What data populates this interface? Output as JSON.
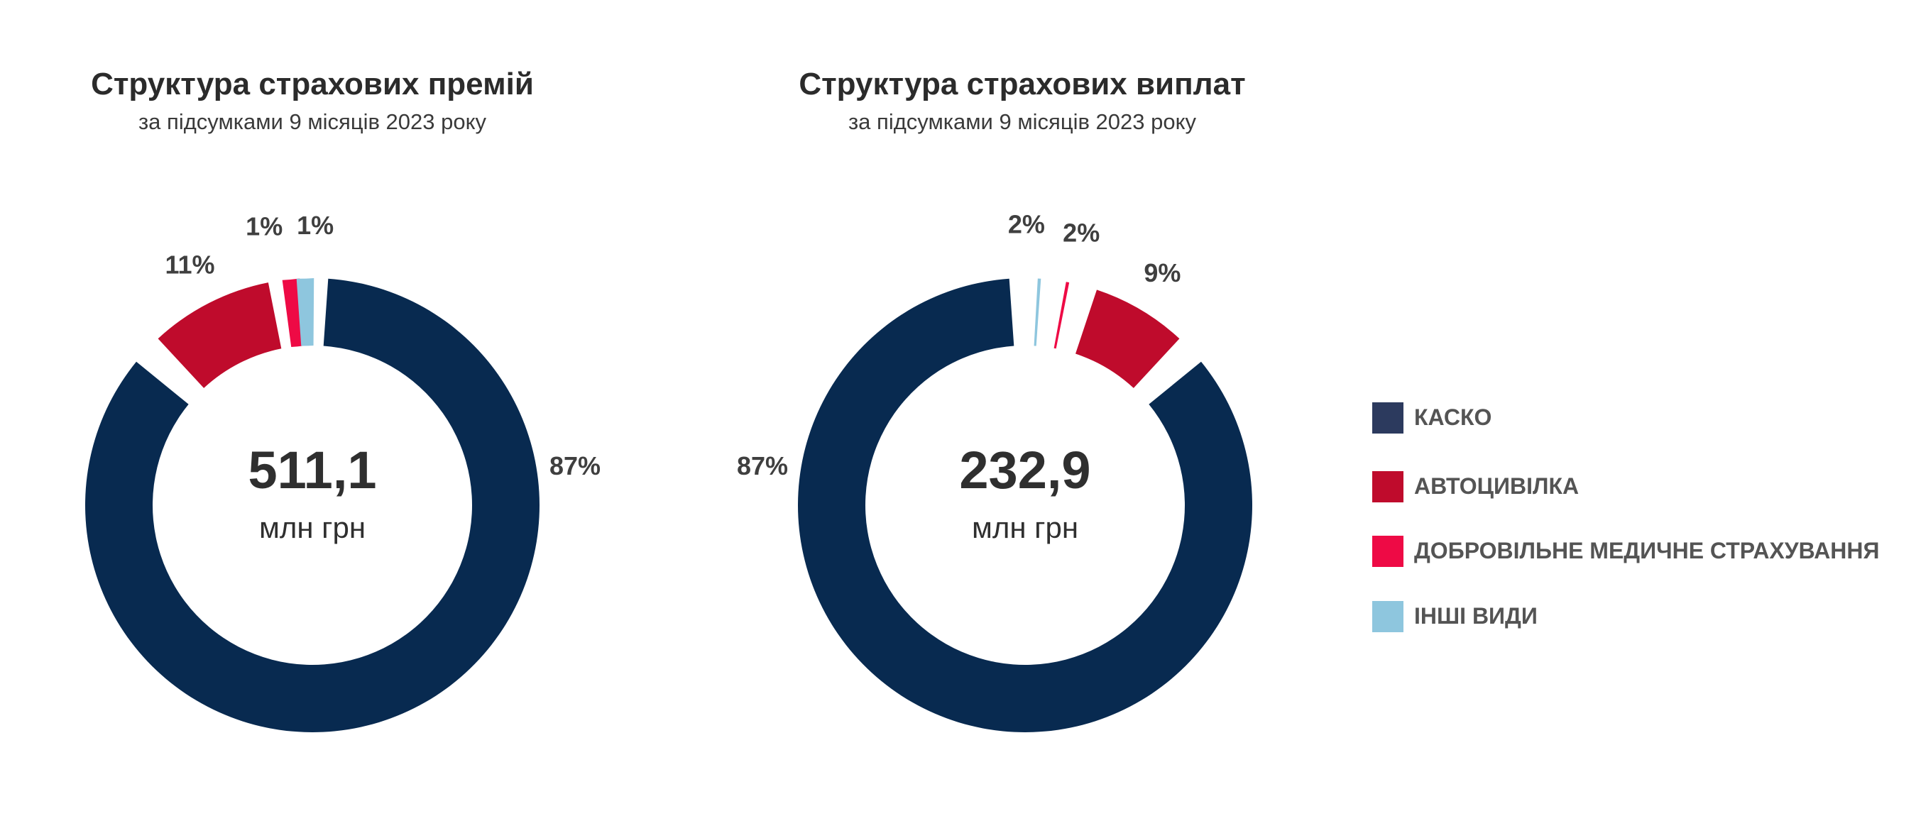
{
  "colors": {
    "kasko": "#082a50",
    "avto": "#bf0b2c",
    "dms": "#ee0a45",
    "other": "#8ec6de"
  },
  "legend": [
    {
      "label": "КАСКО",
      "color": "#2c3a5e"
    },
    {
      "label": "АВТОЦИВІЛКА",
      "color": "#bf0b2c"
    },
    {
      "label": "ДОБРОВІЛЬНЕ МЕДИЧНЕ СТРАХУВАННЯ",
      "color": "#ee0a45"
    },
    {
      "label": "ІНШІ ВИДИ",
      "color": "#8ec6de"
    }
  ],
  "chart_data": [
    {
      "type": "pie",
      "title": "Структура страхових премій",
      "subtitle": "за підсумками 9 місяців 2023 року",
      "center_value": "511,1",
      "center_unit": "млн грн",
      "direction": "clockwise",
      "categories": [
        "КАСКО",
        "АВТОЦИВІЛКА",
        "ДОБРОВІЛЬНЕ МЕДИЧНЕ СТРАХУВАННЯ",
        "ІНШІ ВИДИ"
      ],
      "values": [
        87,
        11,
        1,
        1
      ],
      "labels": [
        "87%",
        "11%",
        "1%",
        "1%"
      ]
    },
    {
      "type": "pie",
      "title": "Структура страхових виплат",
      "subtitle": "за підсумками 9 місяців 2023 року",
      "center_value": "232,9",
      "center_unit": "млн грн",
      "direction": "counterclockwise",
      "categories": [
        "КАСКО",
        "АВТОЦИВІЛКА",
        "ДОБРОВІЛЬНЕ МЕДИЧНЕ СТРАХУВАННЯ",
        "ІНШІ ВИДИ"
      ],
      "values": [
        87,
        9,
        2,
        2
      ],
      "labels": [
        "87%",
        "9%",
        "2%",
        "2%"
      ]
    }
  ]
}
